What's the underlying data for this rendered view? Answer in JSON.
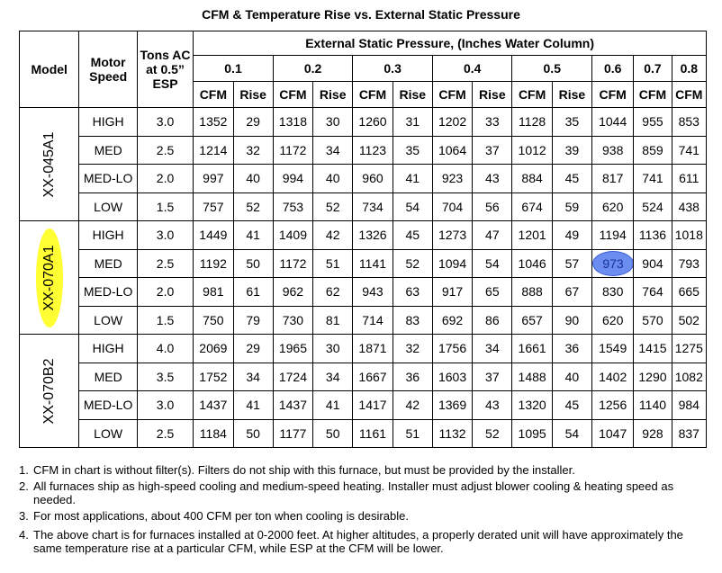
{
  "title": "CFM & Temperature Rise vs. External Static Pressure",
  "headers": {
    "model": "Model",
    "motor_speed": "Motor Speed",
    "tons": "Tons AC at 0.5” ESP",
    "esp_group": "External Static Pressure, (Inches Water Column)",
    "pressures": [
      "0.1",
      "0.2",
      "0.3",
      "0.4",
      "0.5",
      "0.6",
      "0.7",
      "0.8"
    ],
    "cfm": "CFM",
    "rise": "Rise"
  },
  "models": [
    {
      "name": "XX-045A1",
      "highlighted": false,
      "rows": [
        {
          "speed": "HIGH",
          "tons": "3.0",
          "cells": [
            "1352",
            "29",
            "1318",
            "30",
            "1260",
            "31",
            "1202",
            "33",
            "1128",
            "35",
            "1044",
            "955",
            "853"
          ]
        },
        {
          "speed": "MED",
          "tons": "2.5",
          "cells": [
            "1214",
            "32",
            "1172",
            "34",
            "1123",
            "35",
            "1064",
            "37",
            "1012",
            "39",
            "938",
            "859",
            "741"
          ]
        },
        {
          "speed": "MED-LO",
          "tons": "2.0",
          "cells": [
            "997",
            "40",
            "994",
            "40",
            "960",
            "41",
            "923",
            "43",
            "884",
            "45",
            "817",
            "741",
            "611"
          ]
        },
        {
          "speed": "LOW",
          "tons": "1.5",
          "cells": [
            "757",
            "52",
            "753",
            "52",
            "734",
            "54",
            "704",
            "56",
            "674",
            "59",
            "620",
            "524",
            "438"
          ]
        }
      ]
    },
    {
      "name": "XX-070A1",
      "highlighted": true,
      "rows": [
        {
          "speed": "HIGH",
          "tons": "3.0",
          "cells": [
            "1449",
            "41",
            "1409",
            "42",
            "1326",
            "45",
            "1273",
            "47",
            "1201",
            "49",
            "1194",
            "1136",
            "1018"
          ]
        },
        {
          "speed": "MED",
          "tons": "2.5",
          "cells": [
            "1192",
            "50",
            "1172",
            "51",
            "1141",
            "52",
            "1094",
            "54",
            "1046",
            "57",
            "973",
            "904",
            "793"
          ]
        },
        {
          "speed": "MED-LO",
          "tons": "2.0",
          "cells": [
            "981",
            "61",
            "962",
            "62",
            "943",
            "63",
            "917",
            "65",
            "888",
            "67",
            "830",
            "764",
            "665"
          ]
        },
        {
          "speed": "LOW",
          "tons": "1.5",
          "cells": [
            "750",
            "79",
            "730",
            "81",
            "714",
            "83",
            "692",
            "86",
            "657",
            "90",
            "620",
            "570",
            "502"
          ]
        }
      ]
    },
    {
      "name": "XX-070B2",
      "highlighted": false,
      "rows": [
        {
          "speed": "HIGH",
          "tons": "4.0",
          "cells": [
            "2069",
            "29",
            "1965",
            "30",
            "1871",
            "32",
            "1756",
            "34",
            "1661",
            "36",
            "1549",
            "1415",
            "1275"
          ]
        },
        {
          "speed": "MED",
          "tons": "3.5",
          "cells": [
            "1752",
            "34",
            "1724",
            "34",
            "1667",
            "36",
            "1603",
            "37",
            "1488",
            "40",
            "1402",
            "1290",
            "1082"
          ]
        },
        {
          "speed": "MED-LO",
          "tons": "3.0",
          "cells": [
            "1437",
            "41",
            "1437",
            "41",
            "1417",
            "42",
            "1369",
            "43",
            "1320",
            "45",
            "1256",
            "1140",
            "984"
          ]
        },
        {
          "speed": "LOW",
          "tons": "2.5",
          "cells": [
            "1184",
            "50",
            "1177",
            "50",
            "1161",
            "51",
            "1132",
            "52",
            "1095",
            "54",
            "1047",
            "928",
            "837"
          ]
        }
      ]
    }
  ],
  "highlighted_cell": {
    "model": "XX-070A1",
    "speed": "MED",
    "pressure": "0.6",
    "value": "973"
  },
  "colors": {
    "model_highlight": "#ffff33",
    "cell_highlight": "#6b8df0"
  },
  "notes": [
    "CFM in chart is without filter(s). Filters do not ship with this furnace, but must be provided by the installer.",
    "All furnaces ship as high-speed cooling and medium-speed heating. Installer must adjust blower cooling & heating speed as needed.",
    "For most applications, about 400 CFM per ton when cooling is desirable.",
    "The above chart is for furnaces installed at 0-2000 feet. At higher altitudes, a properly derated unit will have approximately the same temperature rise at a particular CFM, while ESP at the CFM will be lower."
  ],
  "note_numbers": [
    "1.",
    "2.",
    "3.",
    "4."
  ]
}
